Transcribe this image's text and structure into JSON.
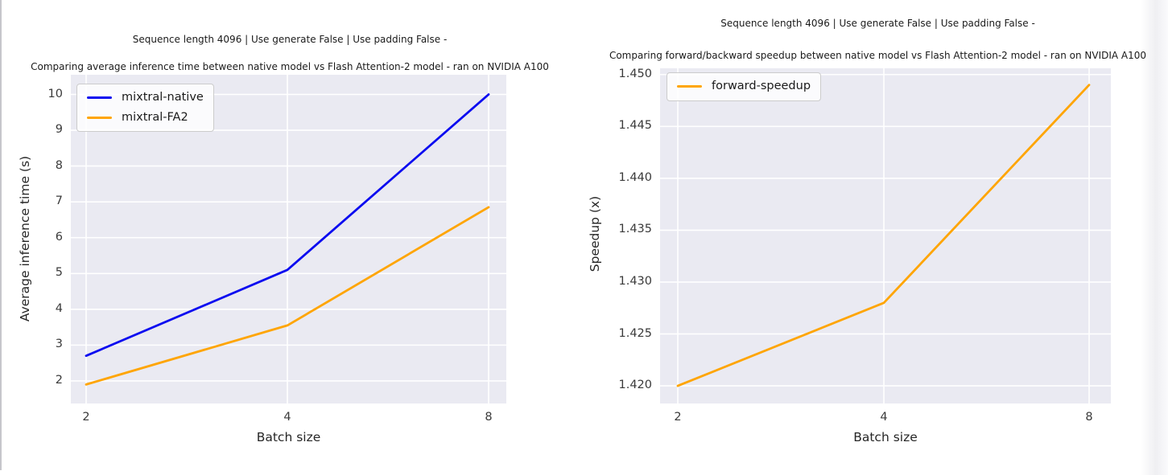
{
  "page": {
    "background": "#ffffff",
    "plot_background": "#eaeaf2",
    "gridline_color": "#ffffff",
    "tick_color": "#3a3a3a",
    "label_color": "#262626",
    "title_color": "#1a1a1a",
    "left_border_color": "#c6c6cb"
  },
  "chart_data": [
    {
      "type": "line",
      "suptitle": "Sequence length 4096 | Use generate False | Use padding False -",
      "title": "Comparing average inference time between native model vs Flash Attention-2 model - ran on NVIDIA A100",
      "xlabel": "Batch size",
      "ylabel": "Average inference time (s)",
      "x": [
        2,
        4,
        8
      ],
      "x_scale": "log2",
      "xticklabels": [
        "2",
        "4",
        "8"
      ],
      "yticks": [
        2,
        3,
        4,
        5,
        6,
        7,
        8,
        9,
        10
      ],
      "yticklabels": [
        "2",
        "3",
        "4",
        "5",
        "6",
        "7",
        "8",
        "9",
        "10"
      ],
      "ylim": [
        1.37,
        10.55
      ],
      "grid": true,
      "legend_position": "upper-left",
      "series": [
        {
          "name": "mixtral-native",
          "color": "#0b0bf0",
          "values": [
            2.7,
            5.1,
            10.0
          ]
        },
        {
          "name": "mixtral-FA2",
          "color": "#ffa503",
          "values": [
            1.9,
            3.55,
            6.85
          ]
        }
      ]
    },
    {
      "type": "line",
      "suptitle": "Sequence length 4096 | Use generate False | Use padding False -",
      "title": "Comparing forward/backward speedup between native model vs Flash Attention-2 model - ran on NVIDIA A100",
      "xlabel": "Batch size",
      "ylabel": "Speedup (x)",
      "x": [
        2,
        4,
        8
      ],
      "x_scale": "log2",
      "xticklabels": [
        "2",
        "4",
        "8"
      ],
      "yticks": [
        1.42,
        1.425,
        1.43,
        1.435,
        1.44,
        1.445,
        1.45
      ],
      "yticklabels": [
        "1.420",
        "1.425",
        "1.430",
        "1.435",
        "1.440",
        "1.445",
        "1.450"
      ],
      "ylim": [
        1.4183,
        1.4506
      ],
      "grid": true,
      "legend_position": "upper-left",
      "series": [
        {
          "name": "forward-speedup",
          "color": "#ffa503",
          "values": [
            1.42,
            1.428,
            1.449
          ]
        }
      ]
    }
  ]
}
